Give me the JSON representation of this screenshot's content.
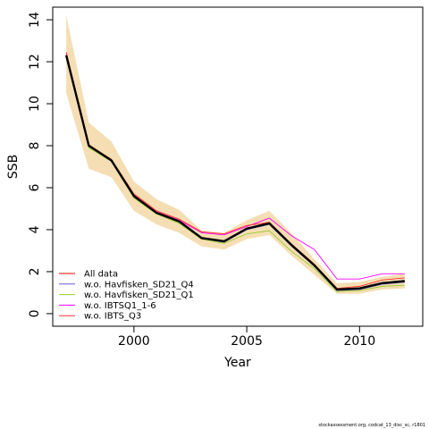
{
  "chart_data": {
    "type": "line",
    "xlabel": "Year",
    "ylabel": "SSB",
    "xlim": [
      1996.4,
      2012.8
    ],
    "ylim": [
      -0.6,
      14.6
    ],
    "xticks": [
      2000,
      2005,
      2010
    ],
    "yticks": [
      0,
      2,
      4,
      6,
      8,
      10,
      12,
      14
    ],
    "grid": false,
    "legend_position": "bottom-left",
    "x": [
      1997,
      1998,
      1999,
      2000,
      2001,
      2002,
      2003,
      2004,
      2005,
      2006,
      2007,
      2008,
      2009,
      2010,
      2011,
      2012
    ],
    "band": {
      "color": "#f5deb3",
      "lower": [
        10.5,
        6.9,
        6.5,
        4.9,
        4.25,
        3.85,
        3.2,
        3.05,
        3.55,
        3.75,
        2.75,
        1.85,
        0.95,
        0.95,
        1.15,
        1.2
      ],
      "upper": [
        14.2,
        9.1,
        8.2,
        6.3,
        5.45,
        4.95,
        3.95,
        3.85,
        4.45,
        4.9,
        3.8,
        2.6,
        1.45,
        1.5,
        1.75,
        1.9
      ]
    },
    "estimate": {
      "color": "#000000",
      "values": [
        12.3,
        8.0,
        7.3,
        5.6,
        4.8,
        4.4,
        3.6,
        3.45,
        4.05,
        4.3,
        3.25,
        2.3,
        1.15,
        1.2,
        1.45,
        1.55
      ]
    },
    "series": [
      {
        "name": "All data",
        "color": "#ff0000",
        "values": [
          12.35,
          8.0,
          7.3,
          5.6,
          4.8,
          4.4,
          3.6,
          3.45,
          4.05,
          4.35,
          3.3,
          2.3,
          1.15,
          1.2,
          1.45,
          1.55
        ]
      },
      {
        "name": "w.o. Havfisken_SD21_Q4",
        "color": "#6a5acd",
        "values": [
          12.3,
          7.95,
          7.3,
          5.55,
          4.8,
          4.35,
          3.55,
          3.4,
          4.0,
          4.25,
          3.2,
          2.25,
          1.1,
          1.15,
          1.4,
          1.5
        ]
      },
      {
        "name": "w.o. Havfisken_SD21_Q1",
        "color": "#9acd32",
        "values": [
          12.25,
          7.9,
          7.25,
          5.5,
          4.75,
          4.3,
          3.55,
          3.35,
          3.8,
          3.95,
          2.95,
          2.15,
          1.05,
          1.1,
          1.3,
          1.35
        ]
      },
      {
        "name": "w.o. IBTSQ1_1-6",
        "color": "#ff00ff",
        "values": [
          12.4,
          8.0,
          7.35,
          5.65,
          4.85,
          4.45,
          3.85,
          3.75,
          4.15,
          4.55,
          3.7,
          3.05,
          1.65,
          1.65,
          1.9,
          1.9
        ]
      },
      {
        "name": "w.o. IBTS_Q3",
        "color": "#ff3030",
        "values": [
          12.45,
          8.05,
          7.35,
          5.7,
          4.9,
          4.5,
          3.9,
          3.8,
          4.2,
          4.35,
          3.3,
          2.35,
          1.2,
          1.3,
          1.6,
          1.7
        ]
      }
    ]
  },
  "footer_note": "stockassessment.org, codcat_13_disc_sc, r1801"
}
